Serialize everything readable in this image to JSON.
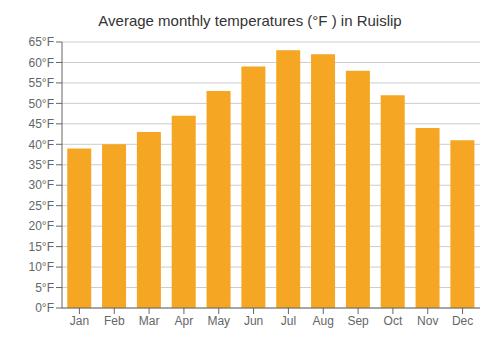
{
  "chart_data": {
    "type": "bar",
    "title": "Average monthly temperatures (°F ) in Ruislip",
    "categories": [
      "Jan",
      "Feb",
      "Mar",
      "Apr",
      "May",
      "Jun",
      "Jul",
      "Aug",
      "Sep",
      "Oct",
      "Nov",
      "Dec"
    ],
    "values": [
      39,
      40,
      43,
      47,
      53,
      59,
      63,
      62,
      58,
      52,
      44,
      41
    ],
    "color": "#F5A623",
    "ylim": [
      0,
      65
    ],
    "yticks": [
      {
        "value": 0,
        "label": "0°F"
      },
      {
        "value": 5,
        "label": "5°F"
      },
      {
        "value": 10,
        "label": "10°F"
      },
      {
        "value": 15,
        "label": "15°F"
      },
      {
        "value": 20,
        "label": "20°F"
      },
      {
        "value": 25,
        "label": "25°F"
      },
      {
        "value": 30,
        "label": "30°F"
      },
      {
        "value": 35,
        "label": "35°F"
      },
      {
        "value": 40,
        "label": "40°F"
      },
      {
        "value": 45,
        "label": "45°F"
      },
      {
        "value": 50,
        "label": "50°F"
      },
      {
        "value": 55,
        "label": "55°F"
      },
      {
        "value": 60,
        "label": "60°F"
      },
      {
        "value": 65,
        "label": "65°F"
      }
    ],
    "grid": true
  }
}
